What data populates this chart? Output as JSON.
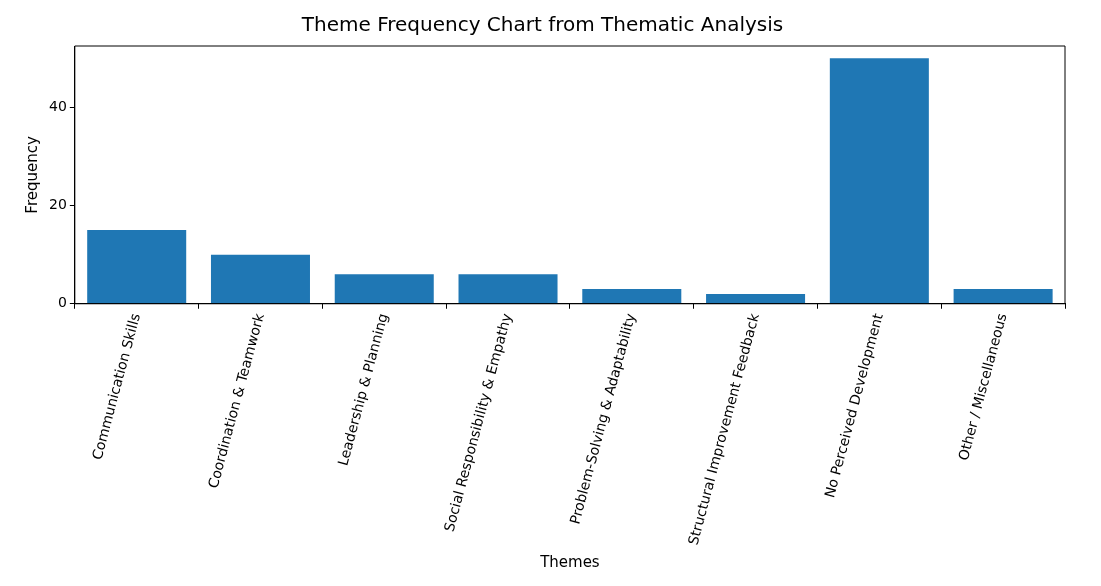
{
  "chart_data": {
    "type": "bar",
    "title": "Theme Frequency Chart from Thematic Analysis",
    "xlabel": "Themes",
    "ylabel": "Frequency",
    "categories": [
      "Communication Skills",
      "Coordination & Teamwork",
      "Leadership & Planning",
      "Social Responsibility & Empathy",
      "Problem-Solving & Adaptability",
      "Structural Improvement Feedback",
      "No Perceived Development",
      "Other / Miscellaneous"
    ],
    "values": [
      15,
      10,
      6,
      6,
      3,
      2,
      50,
      3
    ],
    "color": "#1f77b4",
    "ylim": [
      0,
      52.5
    ],
    "yticks": [
      0,
      20,
      40
    ],
    "grid": false,
    "legend": false
  }
}
